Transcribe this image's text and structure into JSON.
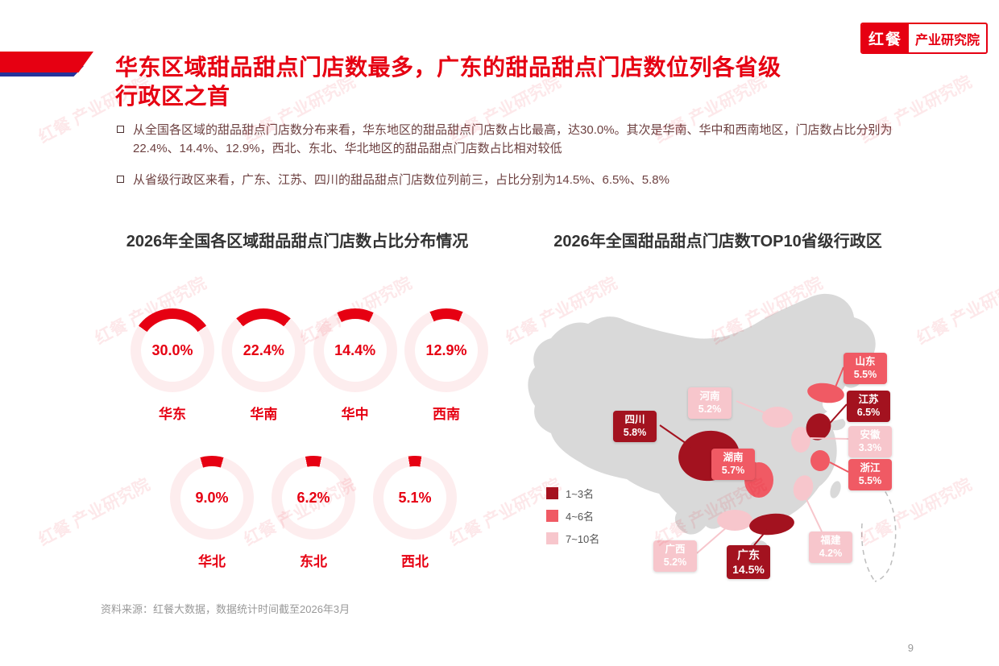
{
  "page": {
    "logo": {
      "brand": "红餐",
      "org": "产业研究院"
    },
    "title_line1": "华东区域甜品甜点门店数最多，广东的甜品甜点门店数位列各省级",
    "title_line2": "行政区之首",
    "bullets": [
      "从全国各区域的甜品甜点门店数分布来看，华东地区的甜品甜点门店数占比最高，达30.0%。其次是华南、华中和西南地区，门店数占比分别为22.4%、14.4%、12.9%，西北、东北、华北地区的甜品甜点门店数占比相对较低",
      "从省级行政区来看，广东、江苏、四川的甜品甜点门店数位列前三，占比分别为14.5%、6.5%、5.8%"
    ],
    "footer": "资料来源：红餐大数据，数据统计时间截至2026年3月",
    "page_number": "9",
    "watermark": "红餐 产业研究院"
  },
  "theme": {
    "primary_red": "#e60012",
    "accent_blue": "#27339b",
    "tier1_dark": "#a3121f",
    "tier2_medium": "#f05a64",
    "tier3_light": "#f7c6cc",
    "body_text": "#6d4141"
  },
  "chart_data": [
    {
      "type": "pie",
      "subtype": "donut-arc-grid",
      "title": "2026年全国各区域甜品甜点门店数占比分布情况",
      "unit": "%",
      "regions": [
        {
          "label": "华东",
          "value": 30.0,
          "display": "30.0%"
        },
        {
          "label": "华南",
          "value": 22.4,
          "display": "22.4%"
        },
        {
          "label": "华中",
          "value": 14.4,
          "display": "14.4%"
        },
        {
          "label": "西南",
          "value": 12.9,
          "display": "12.9%"
        },
        {
          "label": "华北",
          "value": 9.0,
          "display": "9.0%"
        },
        {
          "label": "东北",
          "value": 6.2,
          "display": "6.2%"
        },
        {
          "label": "西北",
          "value": 5.1,
          "display": "5.1%"
        }
      ]
    },
    {
      "type": "heatmap",
      "subtype": "china-choropleth",
      "title": "2026年全国甜品甜点门店数TOP10省级行政区",
      "legend": [
        {
          "label": "1~3名",
          "color": "#a3121f"
        },
        {
          "label": "4~6名",
          "color": "#f05a64"
        },
        {
          "label": "7~10名",
          "color": "#f7c6cc"
        }
      ],
      "provinces": [
        {
          "name": "广东",
          "value": 14.5,
          "display": "14.5%",
          "rank_tier": "1~3名"
        },
        {
          "name": "江苏",
          "value": 6.5,
          "display": "6.5%",
          "rank_tier": "1~3名"
        },
        {
          "name": "四川",
          "value": 5.8,
          "display": "5.8%",
          "rank_tier": "1~3名"
        },
        {
          "name": "湖南",
          "value": 5.7,
          "display": "5.7%",
          "rank_tier": "4~6名"
        },
        {
          "name": "山东",
          "value": 5.5,
          "display": "5.5%",
          "rank_tier": "4~6名"
        },
        {
          "name": "浙江",
          "value": 5.5,
          "display": "5.5%",
          "rank_tier": "4~6名"
        },
        {
          "name": "河南",
          "value": 5.2,
          "display": "5.2%",
          "rank_tier": "7~10名"
        },
        {
          "name": "广西",
          "value": 5.2,
          "display": "5.2%",
          "rank_tier": "7~10名"
        },
        {
          "name": "福建",
          "value": 4.2,
          "display": "4.2%",
          "rank_tier": "7~10名"
        },
        {
          "name": "安徽",
          "value": 3.3,
          "display": "3.3%",
          "rank_tier": "7~10名"
        }
      ]
    }
  ]
}
